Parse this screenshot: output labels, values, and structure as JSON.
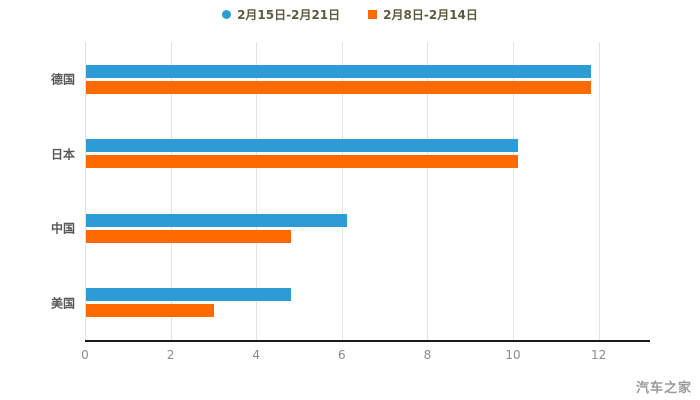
{
  "chart_data": {
    "type": "bar",
    "orientation": "horizontal",
    "title": "",
    "xlabel": "",
    "ylabel": "",
    "categories": [
      "德国",
      "日本",
      "中国",
      "美国"
    ],
    "series": [
      {
        "name": "2月15日-2月21日",
        "color": "#2d9bd5",
        "marker": "circle",
        "values": [
          11.8,
          10.1,
          6.1,
          4.8
        ]
      },
      {
        "name": "2月8日-2月14日",
        "color": "#ff6a00",
        "marker": "square",
        "values": [
          11.8,
          10.1,
          4.8,
          3.0
        ]
      }
    ],
    "xlim": [
      0,
      13.2
    ],
    "xticks": [
      0,
      2,
      4,
      6,
      8,
      10,
      12
    ],
    "grid": true,
    "legend_position": "top"
  },
  "watermark": {
    "text": "汽车之家"
  }
}
